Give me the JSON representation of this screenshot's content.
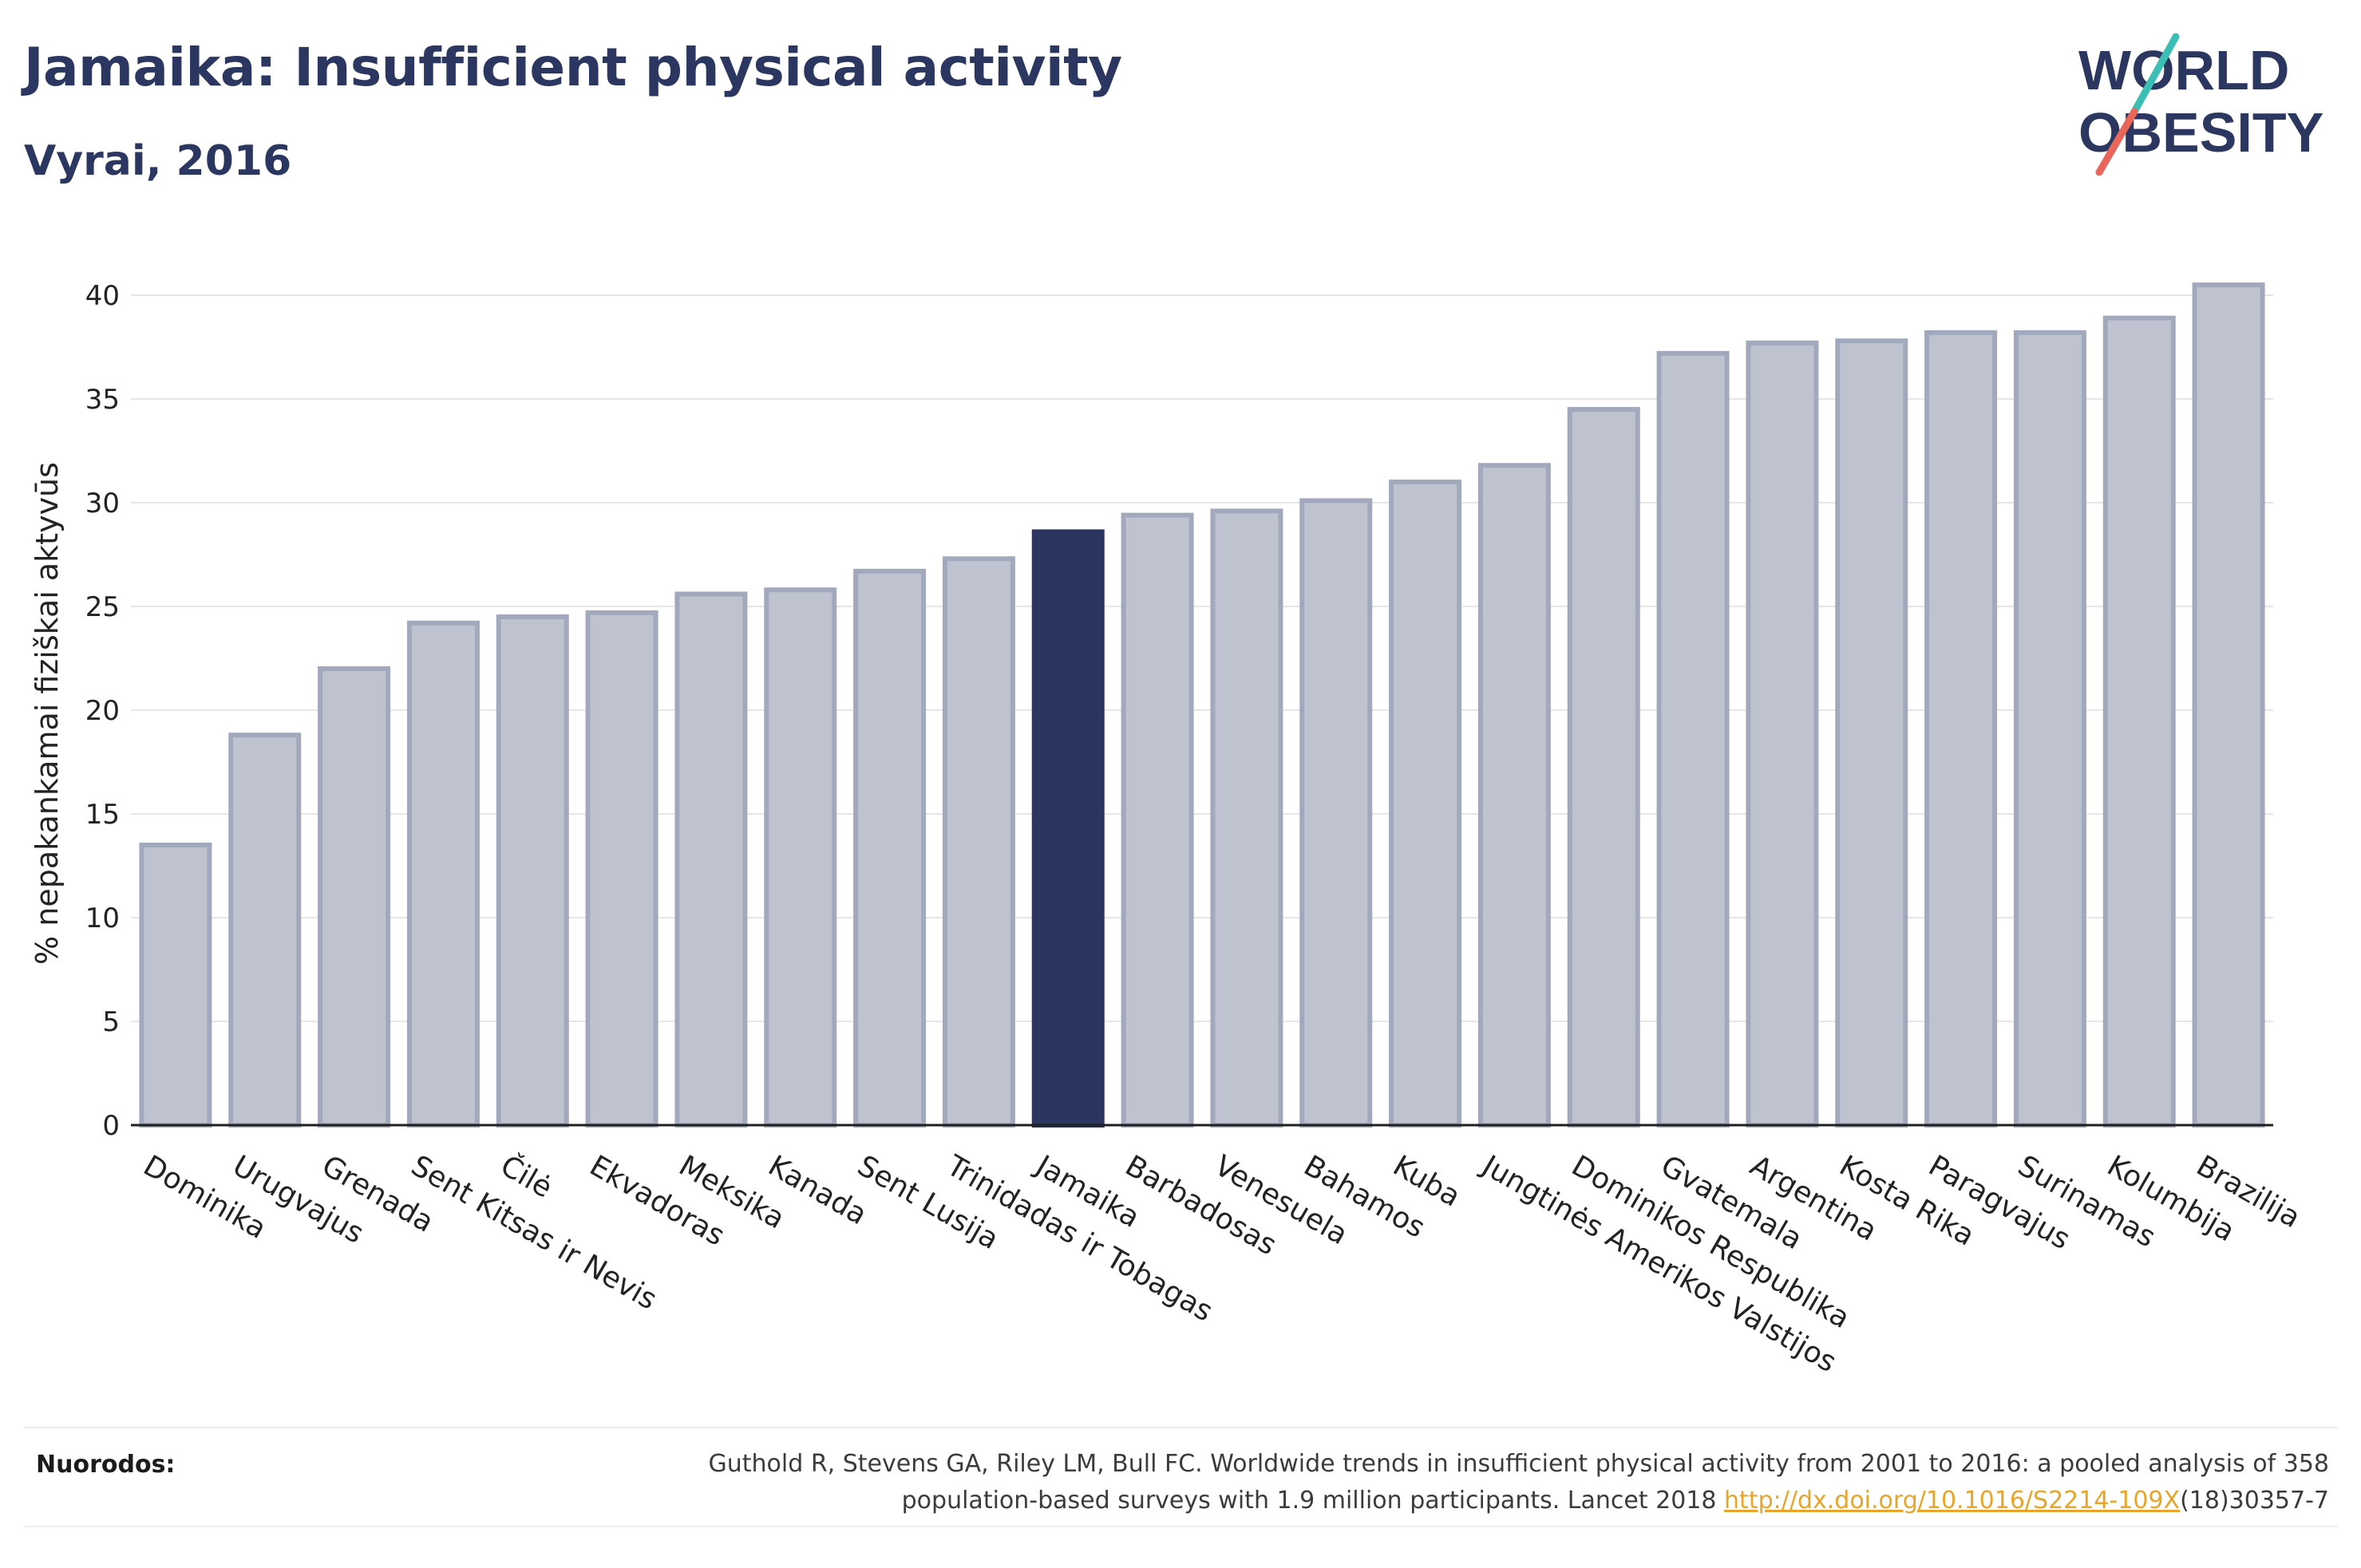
{
  "header": {
    "title": "Jamaika: Insufficient physical activity",
    "subtitle": "Vyrai, 2016"
  },
  "logo": {
    "line1": "WORLD",
    "line2": "OBESITY",
    "colors": {
      "text": "#2b3760",
      "slash_top": "#3bbfb5",
      "slash_bottom": "#e8675a"
    }
  },
  "chart_data": {
    "type": "bar",
    "ylabel": "% nepakankamai fiziškai aktyvūs",
    "xlabel": "",
    "ylim": [
      0,
      42
    ],
    "yticks": [
      0,
      5,
      10,
      15,
      20,
      25,
      30,
      35,
      40
    ],
    "grid": true,
    "highlight": "Jamaika",
    "colors": {
      "bar": "#bfc3d0",
      "bar_stroke": "#a3a9bd",
      "highlight": "#2b3560",
      "grid": "#e6e6e6",
      "axis": "#1f1f1f"
    },
    "categories": [
      "Dominika",
      "Urugvajus",
      "Grenada",
      "Sent Kitsas ir Nevis",
      "Čilė",
      "Ekvadoras",
      "Meksika",
      "Kanada",
      "Sent Lusija",
      "Trinidadas ir Tobagas",
      "Jamaika",
      "Barbadosas",
      "Venesuela",
      "Bahamos",
      "Kuba",
      "Jungtinės Amerikos Valstijos",
      "Dominikos Respublika",
      "Gvatemala",
      "Argentina",
      "Kosta Rika",
      "Paragvajus",
      "Surinamas",
      "Kolumbija",
      "Brazilija"
    ],
    "values": [
      13.5,
      18.8,
      22.0,
      24.2,
      24.5,
      24.7,
      25.6,
      25.8,
      26.7,
      27.3,
      28.6,
      29.4,
      29.6,
      30.1,
      31.0,
      31.8,
      34.5,
      37.2,
      37.7,
      37.8,
      38.2,
      38.2,
      38.9,
      40.5
    ]
  },
  "footer": {
    "label": "Nuorodos:",
    "text_1": "Guthold R, Stevens GA, Riley LM, Bull FC. Worldwide trends in insufficient physical activity from 2001 to 2016: a pooled analysis of 358",
    "text_2": "population-based surveys with 1.9 million participants. Lancet 2018 ",
    "link": "http://dx.doi.org/10.1016/S2214-109X",
    "text_3": "(18)30357-7"
  }
}
